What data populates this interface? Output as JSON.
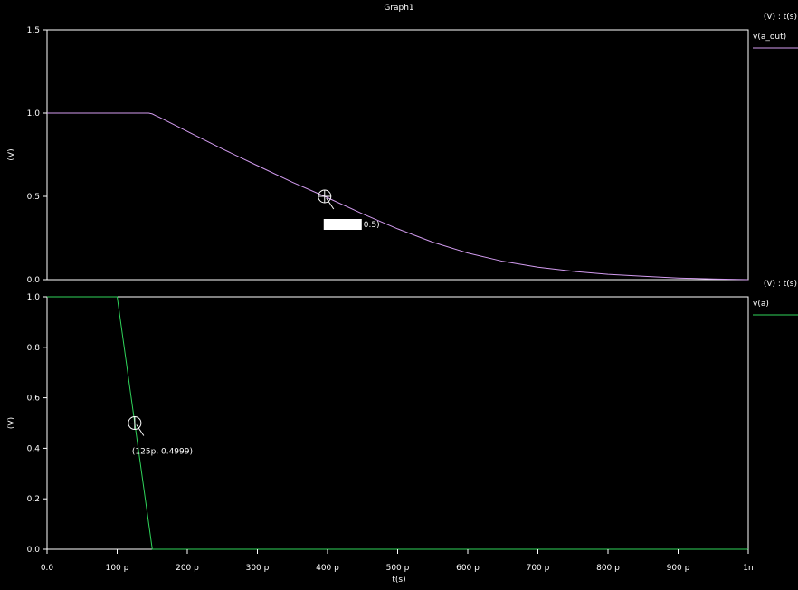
{
  "window_title": "Graph1",
  "chart_data": [
    {
      "type": "line",
      "panel": "top",
      "ylabel": "(V)",
      "yticks": [
        "0.0",
        "0.5",
        "1.0",
        "1.5"
      ],
      "ylim": [
        0,
        1.5
      ],
      "xlim": [
        0,
        1000
      ],
      "legend_header": "(V) : t(s)",
      "legend_placement": "right",
      "series": [
        {
          "name": "v(a_out)",
          "color": "#d39cf0",
          "x": [
            0,
            140,
            145,
            150,
            155,
            160,
            200,
            250,
            300,
            350,
            395.84,
            450,
            500,
            550,
            600,
            650,
            700,
            750,
            800,
            850,
            900,
            950,
            1000
          ],
          "y": [
            1.0,
            1.0,
            1.0,
            0.995,
            0.985,
            0.975,
            0.89,
            0.785,
            0.685,
            0.585,
            0.5,
            0.395,
            0.305,
            0.225,
            0.16,
            0.11,
            0.075,
            0.05,
            0.032,
            0.02,
            0.01,
            0.004,
            0.0
          ]
        }
      ],
      "annotation": {
        "x": 395.84,
        "y": 0.5,
        "label_x": "395.84p",
        "label_y": "0.5)"
      }
    },
    {
      "type": "line",
      "panel": "bottom",
      "ylabel": "(V)",
      "yticks": [
        "0.0",
        "0.2",
        "0.4",
        "0.6",
        "0.8",
        "1.0"
      ],
      "ylim": [
        0,
        1.0
      ],
      "xlim": [
        0,
        1000
      ],
      "legend_header": "(V) : t(s)",
      "legend_placement": "right",
      "series": [
        {
          "name": "v(a)",
          "color": "#2fd35a",
          "x": [
            0,
            100,
            150,
            1000
          ],
          "y": [
            1.0,
            1.0,
            0.0,
            0.0
          ]
        }
      ],
      "annotation": {
        "x": 125,
        "y": 0.4999,
        "label": "(125p, 0.4999)"
      }
    }
  ],
  "xaxis": {
    "label": "t(s)",
    "ticks": [
      {
        "v": 0,
        "label": "0.0"
      },
      {
        "v": 100,
        "label": "100 p"
      },
      {
        "v": 200,
        "label": "200 p"
      },
      {
        "v": 300,
        "label": "300 p"
      },
      {
        "v": 400,
        "label": "400 p"
      },
      {
        "v": 500,
        "label": "500 p"
      },
      {
        "v": 600,
        "label": "600 p"
      },
      {
        "v": 700,
        "label": "700 p"
      },
      {
        "v": 800,
        "label": "800 p"
      },
      {
        "v": 900,
        "label": "900 p"
      },
      {
        "v": 1000,
        "label": "1n"
      }
    ]
  }
}
